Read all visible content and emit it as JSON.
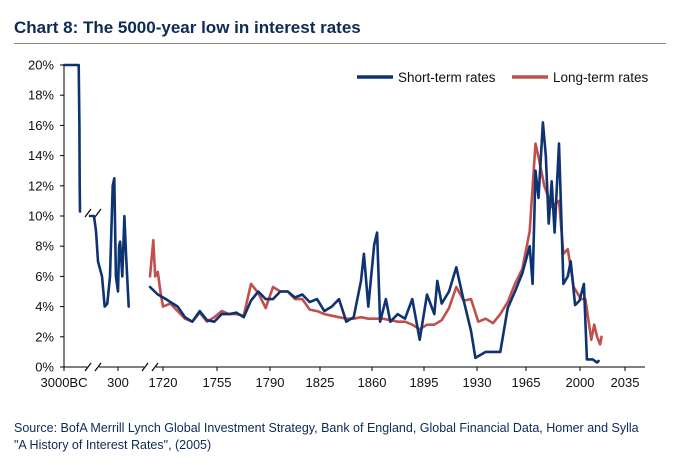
{
  "title": "Chart 8: The 5000-year low in interest rates",
  "source_lines": [
    "Source: BofA Merrill Lynch Global Investment Strategy, Bank of England, Global Financial Data, Homer and Sylla",
    "\"A History of Interest Rates\", (2005)"
  ],
  "colors": {
    "short": "#0d3372",
    "long": "#c0504d",
    "title": "#0d2a57"
  },
  "chart_data": {
    "type": "line",
    "x_axis": {
      "tick_labels": [
        "3000BC",
        "300",
        "1720",
        "1755",
        "1790",
        "1825",
        "1860",
        "1895",
        "1930",
        "1965",
        "2000",
        "2035"
      ],
      "breaks": [
        "3000BC|300",
        "300|1720"
      ]
    },
    "y_axis": {
      "tick_labels": [
        "0%",
        "2%",
        "4%",
        "6%",
        "8%",
        "10%",
        "12%",
        "14%",
        "16%",
        "18%",
        "20%"
      ],
      "ylim": [
        0,
        20
      ],
      "unit": "%"
    },
    "legend": {
      "placement": "top-right"
    },
    "series": [
      {
        "name": "Short-term rates",
        "segments": [
          [
            [
              "3000BC",
              20
            ],
            [
              "-2200",
              20
            ],
            [
              "-1600",
              20
            ],
            [
              "-1200",
              20
            ],
            [
              "-900",
              20
            ],
            [
              "-700",
              20
            ],
            [
              "-600",
              16
            ],
            [
              "-550",
              12
            ],
            [
              "-500",
              10.3
            ]
          ],
          [
            [
              "-300",
              10
            ],
            [
              "-200",
              10
            ],
            [
              "-150",
              9
            ],
            [
              "-100",
              7
            ],
            [
              "-50",
              6.5
            ],
            [
              "0",
              6
            ],
            [
              "50",
              4
            ],
            [
              "100",
              4.2
            ],
            [
              "150",
              6
            ],
            [
              "200",
              12
            ],
            [
              "230",
              12.5
            ],
            [
              "260",
              6
            ],
            [
              "300",
              5
            ],
            [
              "320",
              8
            ],
            [
              "340",
              8.3
            ],
            [
              "380",
              6
            ],
            [
              "420",
              10
            ],
            [
              "450",
              7.5
            ],
            [
              "500",
              4
            ]
          ],
          [
            [
              "1700",
              5.3
            ],
            [
              "1712",
              4.8
            ],
            [
              "1722",
              4.5
            ],
            [
              "1730",
              4
            ],
            [
              "1735",
              3.3
            ],
            [
              "1740",
              3
            ],
            [
              "1745",
              3.7
            ],
            [
              "1750",
              3.1
            ],
            [
              "1755",
              3
            ],
            [
              "1760",
              3.5
            ],
            [
              "1765",
              3.5
            ],
            [
              "1770",
              3.6
            ],
            [
              "1775",
              3.3
            ],
            [
              "1780",
              4.4
            ],
            [
              "1785",
              5
            ],
            [
              "1790",
              4.5
            ],
            [
              "1795",
              4.5
            ],
            [
              "1800",
              5
            ],
            [
              "1805",
              5
            ],
            [
              "1810",
              4.6
            ],
            [
              "1815",
              4.8
            ],
            [
              "1820",
              4.3
            ],
            [
              "1825",
              4.5
            ],
            [
              "1830",
              3.7
            ],
            [
              "1835",
              4
            ],
            [
              "1840",
              4.5
            ],
            [
              "1845",
              3
            ],
            [
              "1850",
              3.3
            ],
            [
              "1855",
              5.7
            ],
            [
              "1857",
              7.5
            ],
            [
              "1860",
              4
            ],
            [
              "1864",
              8.1
            ],
            [
              "1866",
              8.9
            ],
            [
              "1868",
              3
            ],
            [
              "1872",
              4.5
            ],
            [
              "1875",
              3
            ],
            [
              "1880",
              3.5
            ],
            [
              "1885",
              3.2
            ],
            [
              "1890",
              4.5
            ],
            [
              "1895",
              1.8
            ],
            [
              "1900",
              4.8
            ],
            [
              "1905",
              3.5
            ],
            [
              "1907",
              5.7
            ],
            [
              "1910",
              4.2
            ],
            [
              "1915",
              5
            ],
            [
              "1920",
              6.6
            ],
            [
              "1925",
              4.4
            ],
            [
              "1930",
              2.4
            ],
            [
              "1933",
              0.6
            ],
            [
              "1940",
              1
            ],
            [
              "1950",
              1
            ],
            [
              "1955",
              3.9
            ],
            [
              "1960",
              5
            ],
            [
              "1965",
              6.2
            ],
            [
              "1970",
              8
            ],
            [
              "1972",
              5.5
            ],
            [
              "1974",
              13
            ],
            [
              "1976",
              11.2
            ],
            [
              "1979",
              16.2
            ],
            [
              "1981",
              14
            ],
            [
              "1983",
              9.5
            ],
            [
              "1985",
              12.3
            ],
            [
              "1987",
              8.9
            ],
            [
              "1990",
              14.8
            ],
            [
              "1993",
              5.5
            ],
            [
              "1996",
              6
            ],
            [
              "1998",
              7
            ],
            [
              "2001",
              4.1
            ],
            [
              "2004",
              4.4
            ],
            [
              "2007",
              5.5
            ],
            [
              "2009",
              0.5
            ],
            [
              "2013",
              0.5
            ],
            [
              "2016",
              0.3
            ],
            [
              "2017",
              0.4
            ]
          ]
        ]
      },
      {
        "name": "Long-term rates",
        "segments": [
          [
            [
              "1700",
              6
            ],
            [
              "1705",
              8.4
            ],
            [
              "1708",
              6
            ],
            [
              "1712",
              6.3
            ],
            [
              "1716",
              5
            ],
            [
              "1720",
              4
            ],
            [
              "1725",
              4.2
            ],
            [
              "1730",
              3.7
            ],
            [
              "1735",
              3.2
            ],
            [
              "1740",
              3
            ],
            [
              "1745",
              3.6
            ],
            [
              "1750",
              3
            ],
            [
              "1755",
              3.3
            ],
            [
              "1760",
              3.7
            ],
            [
              "1765",
              3.5
            ],
            [
              "1770",
              3.5
            ],
            [
              "1775",
              3.4
            ],
            [
              "1780",
              5.5
            ],
            [
              "1785",
              4.9
            ],
            [
              "1790",
              3.9
            ],
            [
              "1795",
              5.3
            ],
            [
              "1800",
              5
            ],
            [
              "1805",
              5
            ],
            [
              "1810",
              4.5
            ],
            [
              "1815",
              4.5
            ],
            [
              "1820",
              3.8
            ],
            [
              "1825",
              3.7
            ],
            [
              "1830",
              3.5
            ],
            [
              "1835",
              3.4
            ],
            [
              "1840",
              3.3
            ],
            [
              "1845",
              3.2
            ],
            [
              "1850",
              3.2
            ],
            [
              "1855",
              3.3
            ],
            [
              "1860",
              3.2
            ],
            [
              "1865",
              3.2
            ],
            [
              "1870",
              3.2
            ],
            [
              "1875",
              3.1
            ],
            [
              "1880",
              3
            ],
            [
              "1885",
              3
            ],
            [
              "1890",
              2.8
            ],
            [
              "1895",
              2.5
            ],
            [
              "1900",
              2.8
            ],
            [
              "1905",
              2.8
            ],
            [
              "1910",
              3.1
            ],
            [
              "1915",
              3.9
            ],
            [
              "1920",
              5.3
            ],
            [
              "1925",
              4.4
            ],
            [
              "1930",
              4.5
            ],
            [
              "1935",
              3
            ],
            [
              "1940",
              3.2
            ],
            [
              "1945",
              2.9
            ],
            [
              "1950",
              3.5
            ],
            [
              "1955",
              4.3
            ],
            [
              "1960",
              5.5
            ],
            [
              "1965",
              6.5
            ],
            [
              "1970",
              9
            ],
            [
              "1974",
              14.8
            ],
            [
              "1976",
              13.9
            ],
            [
              "1980",
              12
            ],
            [
              "1985",
              10.6
            ],
            [
              "1990",
              11
            ],
            [
              "1993",
              7.5
            ],
            [
              "1996",
              7.8
            ],
            [
              "2000",
              5.3
            ],
            [
              "2005",
              4.5
            ],
            [
              "2008",
              4.5
            ],
            [
              "2012",
              1.8
            ],
            [
              "2014",
              2.8
            ],
            [
              "2016",
              2
            ],
            [
              "2018",
              1.5
            ],
            [
              "2019",
              2
            ]
          ]
        ]
      }
    ]
  }
}
